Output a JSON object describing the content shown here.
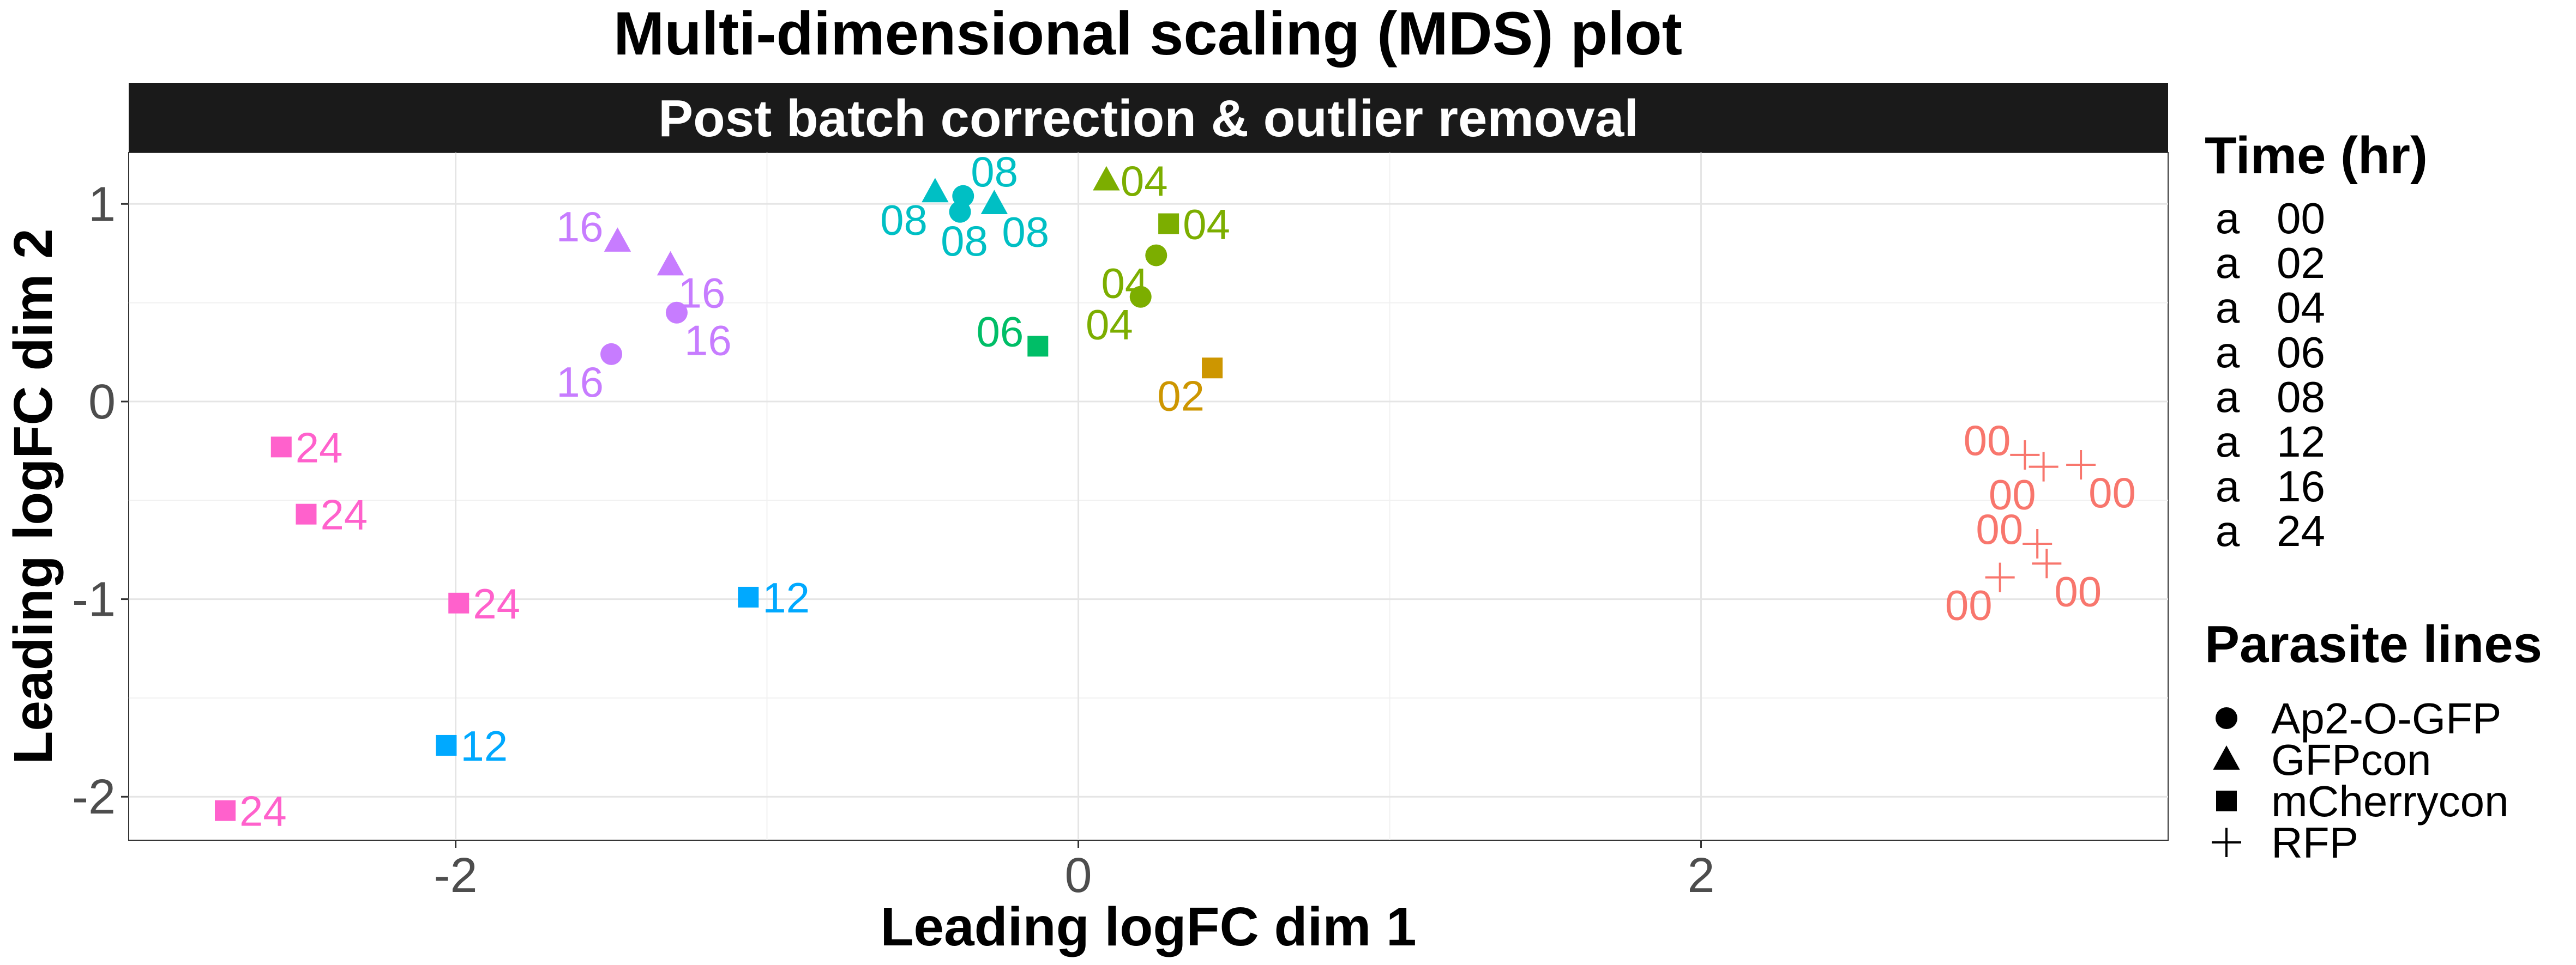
{
  "chart_data": {
    "type": "scatter",
    "title": "Multi-dimensional scaling (MDS) plot",
    "subtitle": "Post batch correction & outlier removal",
    "xlabel": "Leading logFC dim 1",
    "ylabel": "Leading logFC dim 2",
    "xlim": [
      -3.05,
      3.5
    ],
    "ylim": [
      -2.22,
      1.26
    ],
    "xticks": [
      -2,
      0,
      2
    ],
    "xtick_labels": [
      "-2",
      "0",
      "2"
    ],
    "yticks": [
      -2,
      -1,
      0,
      1
    ],
    "ytick_labels": [
      "-2",
      "-1",
      "0",
      "1"
    ],
    "grid": true,
    "legend_position": "right",
    "legends": [
      {
        "title": "Time (hr)",
        "entries": [
          {
            "label": "00",
            "color": "#F8766D"
          },
          {
            "label": "02",
            "color": "#CD9600"
          },
          {
            "label": "04",
            "color": "#7CAE00"
          },
          {
            "label": "06",
            "color": "#00BE67"
          },
          {
            "label": "08",
            "color": "#00BFC4"
          },
          {
            "label": "12",
            "color": "#00A9FF"
          },
          {
            "label": "16",
            "color": "#C77CFF"
          },
          {
            "label": "24",
            "color": "#FF61CC"
          }
        ]
      },
      {
        "title": "Parasite lines",
        "entries": [
          {
            "label": "Ap2-O-GFP",
            "shape": "circle"
          },
          {
            "label": "GFPcon",
            "shape": "triangle"
          },
          {
            "label": "mCherrycon",
            "shape": "square"
          },
          {
            "label": "RFP",
            "shape": "plus"
          }
        ]
      }
    ],
    "points": [
      {
        "x": -2.56,
        "y": -0.23,
        "time": "24",
        "line": "mCherrycon",
        "label": "24",
        "label_pos": "right"
      },
      {
        "x": -2.48,
        "y": -0.57,
        "time": "24",
        "line": "mCherrycon",
        "label": "24",
        "label_pos": "right"
      },
      {
        "x": -1.99,
        "y": -1.02,
        "time": "24",
        "line": "mCherrycon",
        "label": "24",
        "label_pos": "right"
      },
      {
        "x": -2.74,
        "y": -2.07,
        "time": "24",
        "line": "mCherrycon",
        "label": "24",
        "label_pos": "right"
      },
      {
        "x": -2.03,
        "y": -1.74,
        "time": "12",
        "line": "mCherrycon",
        "label": "12",
        "label_pos": "right"
      },
      {
        "x": -1.06,
        "y": -0.99,
        "time": "12",
        "line": "mCherrycon",
        "label": "12",
        "label_pos": "right"
      },
      {
        "x": -1.48,
        "y": 0.81,
        "time": "16",
        "line": "GFPcon",
        "label": "16",
        "label_pos": "left"
      },
      {
        "x": -1.31,
        "y": 0.69,
        "time": "16",
        "line": "GFPcon",
        "label": "16",
        "label_pos": "below-right"
      },
      {
        "x": -1.29,
        "y": 0.45,
        "time": "16",
        "line": "Ap2-O-GFP",
        "label": "16",
        "label_pos": "below-right"
      },
      {
        "x": -1.5,
        "y": 0.24,
        "time": "16",
        "line": "Ap2-O-GFP",
        "label": "16",
        "label_pos": "below-left"
      },
      {
        "x": -0.46,
        "y": 1.06,
        "time": "08",
        "line": "GFPcon",
        "label": "08",
        "label_pos": "below-left"
      },
      {
        "x": -0.37,
        "y": 1.04,
        "time": "08",
        "line": "Ap2-O-GFP",
        "label": "08",
        "label_pos": "above-right"
      },
      {
        "x": -0.38,
        "y": 0.96,
        "time": "08",
        "line": "Ap2-O-GFP",
        "label": "08",
        "label_pos": "below"
      },
      {
        "x": -0.27,
        "y": 1.0,
        "time": "08",
        "line": "GFPcon",
        "label": "08",
        "label_pos": "below-right"
      },
      {
        "x": -0.13,
        "y": 0.28,
        "time": "06",
        "line": "mCherrycon",
        "label": "06",
        "label_pos": "left"
      },
      {
        "x": 0.09,
        "y": 1.12,
        "time": "04",
        "line": "GFPcon",
        "label": "04",
        "label_pos": "right"
      },
      {
        "x": 0.29,
        "y": 0.9,
        "time": "04",
        "line": "mCherrycon",
        "label": "04",
        "label_pos": "right"
      },
      {
        "x": 0.25,
        "y": 0.74,
        "time": "04",
        "line": "Ap2-O-GFP",
        "label": "04",
        "label_pos": "below-left"
      },
      {
        "x": 0.2,
        "y": 0.53,
        "time": "04",
        "line": "Ap2-O-GFP",
        "label": "04",
        "label_pos": "below-left"
      },
      {
        "x": 0.43,
        "y": 0.17,
        "time": "02",
        "line": "mCherrycon",
        "label": "02",
        "label_pos": "below-left"
      },
      {
        "x": 3.04,
        "y": -0.27,
        "time": "00",
        "line": "RFP",
        "label": "00",
        "label_pos": "left"
      },
      {
        "x": 3.1,
        "y": -0.33,
        "time": "00",
        "line": "RFP",
        "label": "00",
        "label_pos": "below-left"
      },
      {
        "x": 3.22,
        "y": -0.32,
        "time": "00",
        "line": "RFP",
        "label": "00",
        "label_pos": "below-right"
      },
      {
        "x": 3.08,
        "y": -0.72,
        "time": "00",
        "line": "RFP",
        "label": "00",
        "label_pos": "left"
      },
      {
        "x": 3.11,
        "y": -0.82,
        "time": "00",
        "line": "RFP",
        "label": "00",
        "label_pos": "below-right"
      },
      {
        "x": 2.96,
        "y": -0.89,
        "time": "00",
        "line": "RFP",
        "label": "00",
        "label_pos": "below-left"
      }
    ]
  }
}
